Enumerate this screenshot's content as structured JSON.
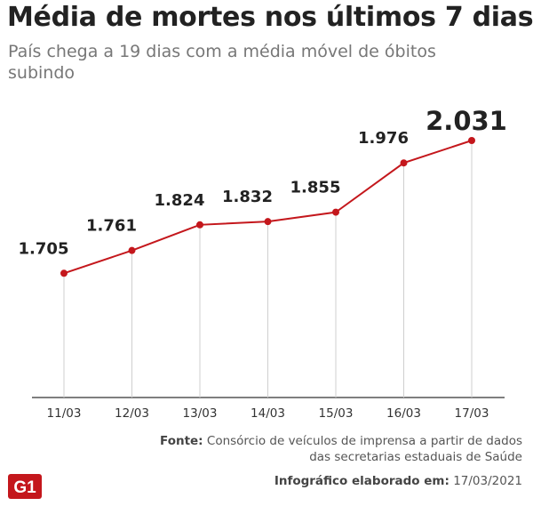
{
  "header": {
    "title": "Média de mortes nos últimos 7 dias",
    "subtitle": "País chega a 19 dias com a média móvel de óbitos subindo"
  },
  "chart_data": {
    "type": "line",
    "categories": [
      "11/03",
      "12/03",
      "13/03",
      "14/03",
      "15/03",
      "16/03",
      "17/03"
    ],
    "values": [
      1705,
      1761,
      1824,
      1832,
      1855,
      1976,
      2031
    ],
    "labels": [
      "1.705",
      "1.761",
      "1.824",
      "1.832",
      "1.855",
      "1.976",
      "2.031"
    ],
    "highlight_index": 6,
    "ylim": [
      1400,
      2031
    ],
    "grid": false,
    "line_color": "#c4171c"
  },
  "footer": {
    "source_label": "Fonte:",
    "source_text": "Consórcio de veículos de imprensa a partir de dados das secretarias estaduais de Saúde",
    "logo_text": "G1",
    "logo_color": "#c4171c",
    "credit_label": "Infográfico elaborado em:",
    "credit_date": "17/03/2021"
  }
}
